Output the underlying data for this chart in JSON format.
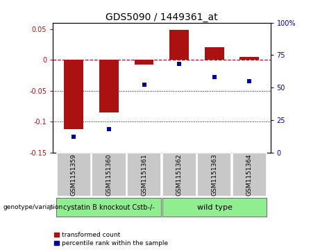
{
  "title": "GDS5090 / 1449361_at",
  "samples": [
    "GSM1151359",
    "GSM1151360",
    "GSM1151361",
    "GSM1151362",
    "GSM1151363",
    "GSM1151364"
  ],
  "red_bars": [
    -0.112,
    -0.085,
    -0.008,
    0.048,
    0.02,
    0.005
  ],
  "blue_dots": [
    12,
    18,
    52,
    68,
    58,
    55
  ],
  "ylim_left": [
    -0.15,
    0.06
  ],
  "ylim_right": [
    0,
    100
  ],
  "left_ticks": [
    0.05,
    0.0,
    -0.05,
    -0.1,
    -0.15
  ],
  "left_tick_labels": [
    "0.05",
    "0",
    "-0.05",
    "-0.1",
    "-0.15"
  ],
  "right_ticks": [
    100,
    75,
    50,
    25,
    0
  ],
  "right_tick_labels": [
    "100%",
    "75",
    "50",
    "25",
    "0"
  ],
  "group1_label": "cystatin B knockout Cstb-/-",
  "group2_label": "wild type",
  "group_bg_color": "#90EE90",
  "sample_bg_color": "#C8C8C8",
  "bar_color": "#AA1111",
  "dot_color": "#000099",
  "legend_red_label": "transformed count",
  "legend_blue_label": "percentile rank within the sample",
  "genotype_label": "genotype/variation",
  "title_fontsize": 10,
  "tick_fontsize": 7,
  "sample_fontsize": 6.5,
  "group_fontsize": 7,
  "legend_fontsize": 6.5
}
